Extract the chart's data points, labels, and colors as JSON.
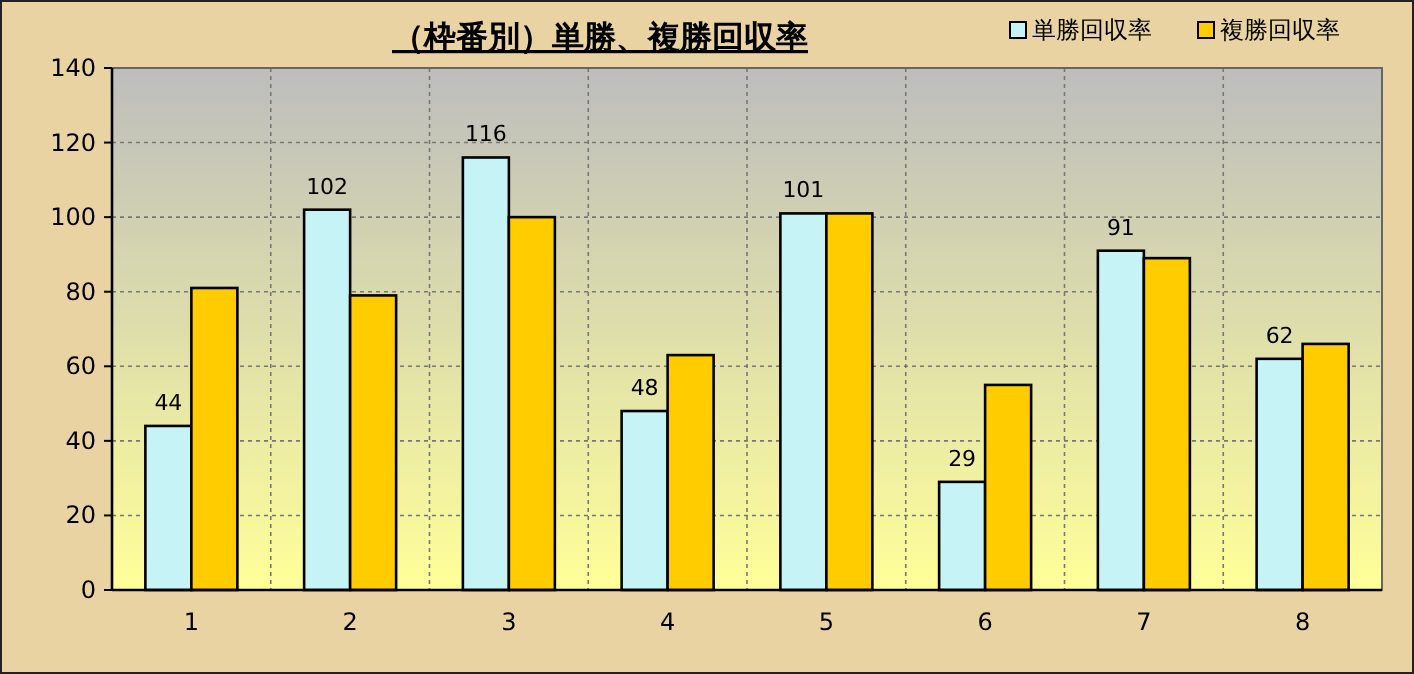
{
  "chart_data": {
    "type": "bar",
    "title": "（枠番別）単勝、複勝回収率",
    "categories": [
      "1",
      "2",
      "3",
      "4",
      "5",
      "6",
      "7",
      "8"
    ],
    "series": [
      {
        "name": "単勝回収率",
        "color": "#c6f4f6",
        "values": [
          44,
          102,
          116,
          48,
          101,
          29,
          91,
          62
        ],
        "value_labels": [
          "44",
          "102",
          "116",
          "48",
          "101",
          "29",
          "91",
          "62"
        ]
      },
      {
        "name": "複勝回収率",
        "color": "#ffcc00",
        "values": [
          81,
          79,
          100,
          63,
          101,
          55,
          89,
          66
        ]
      }
    ],
    "ylim": [
      0,
      140
    ],
    "yticks": [
      0,
      20,
      40,
      60,
      80,
      100,
      120,
      140
    ],
    "grid": true,
    "legend": "top right"
  }
}
